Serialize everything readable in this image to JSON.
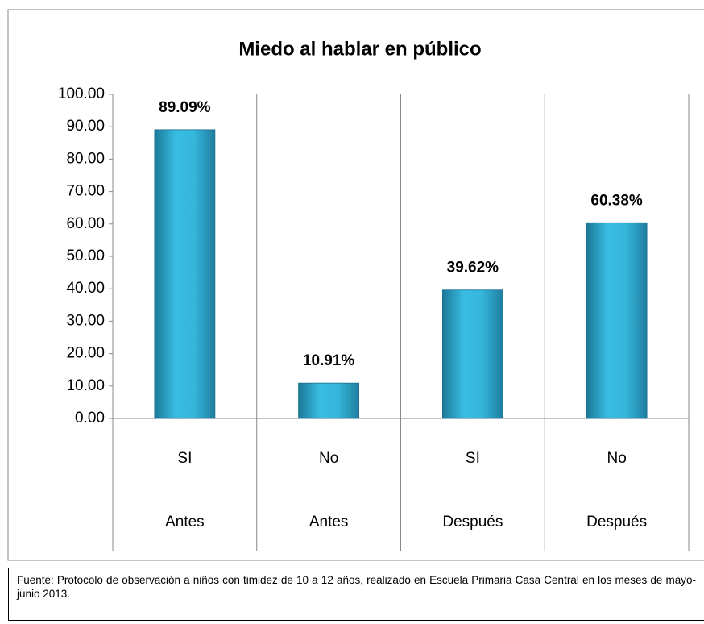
{
  "chart_data": {
    "type": "bar",
    "title": "Miedo al hablar en público",
    "categories": [
      "SI",
      "No",
      "SI",
      "No"
    ],
    "category_groups": [
      "Antes",
      "Antes",
      "Después",
      "Después"
    ],
    "values": [
      89.09,
      10.91,
      39.62,
      60.38
    ],
    "value_labels": [
      "89.09%",
      "10.91%",
      "39.62%",
      "60.38%"
    ],
    "color": "#31b3dc",
    "ylim": [
      0,
      100
    ],
    "yticks": [
      {
        "value": 0,
        "label": "0.00"
      },
      {
        "value": 10,
        "label": "10.00"
      },
      {
        "value": 20,
        "label": "20.00"
      },
      {
        "value": 30,
        "label": "30.00"
      },
      {
        "value": 40,
        "label": "40.00"
      },
      {
        "value": 50,
        "label": "50.00"
      },
      {
        "value": 60,
        "label": "60.00"
      },
      {
        "value": 70,
        "label": "70.00"
      },
      {
        "value": 80,
        "label": "80.00"
      },
      {
        "value": 90,
        "label": "90.00"
      },
      {
        "value": 100,
        "label": "100.00"
      }
    ]
  },
  "source": "Fuente: Protocolo de observación a niños con timidez de 10 a 12 años, realizado en Escuela Primaria Casa Central en los meses de mayo-junio 2013."
}
